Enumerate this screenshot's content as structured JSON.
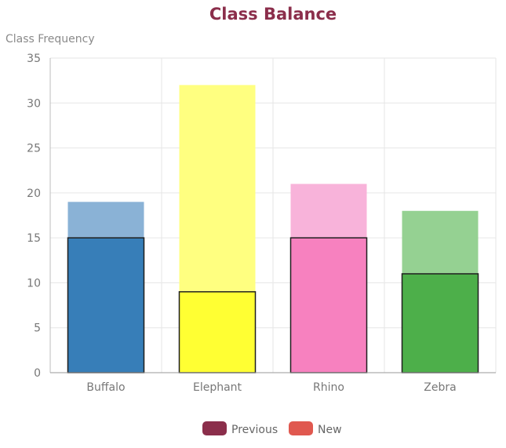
{
  "chart_data": {
    "type": "bar",
    "title": "Class Balance",
    "ylabel": "Class Frequency",
    "xlabel": "",
    "categories": [
      "Buffalo",
      "Elephant",
      "Rhino",
      "Zebra"
    ],
    "ylim": [
      0,
      35
    ],
    "yticks": [
      0,
      5,
      10,
      15,
      20,
      25,
      30,
      35
    ],
    "series": [
      {
        "name": "Previous",
        "values": [
          15,
          9,
          15,
          11
        ]
      },
      {
        "name": "New",
        "values": [
          19,
          32,
          21,
          18
        ]
      }
    ],
    "bar_colors_previous": [
      "#377eb8",
      "#ffff33",
      "#f781bf",
      "#4daf4a"
    ],
    "bar_colors_new": [
      "#8ab2d6",
      "#ffff80",
      "#f8b3da",
      "#95d192"
    ],
    "legend": {
      "placement": "bottom-center",
      "items": [
        {
          "label": "Previous",
          "color": "#8b2e4b"
        },
        {
          "label": "New",
          "color": "#e0584f"
        }
      ]
    },
    "grid": true
  },
  "colors": {
    "title": "#8b2e4b",
    "axis_label": "#8a8a8a",
    "tick": "#777777",
    "grid": "#e6e6e6"
  }
}
